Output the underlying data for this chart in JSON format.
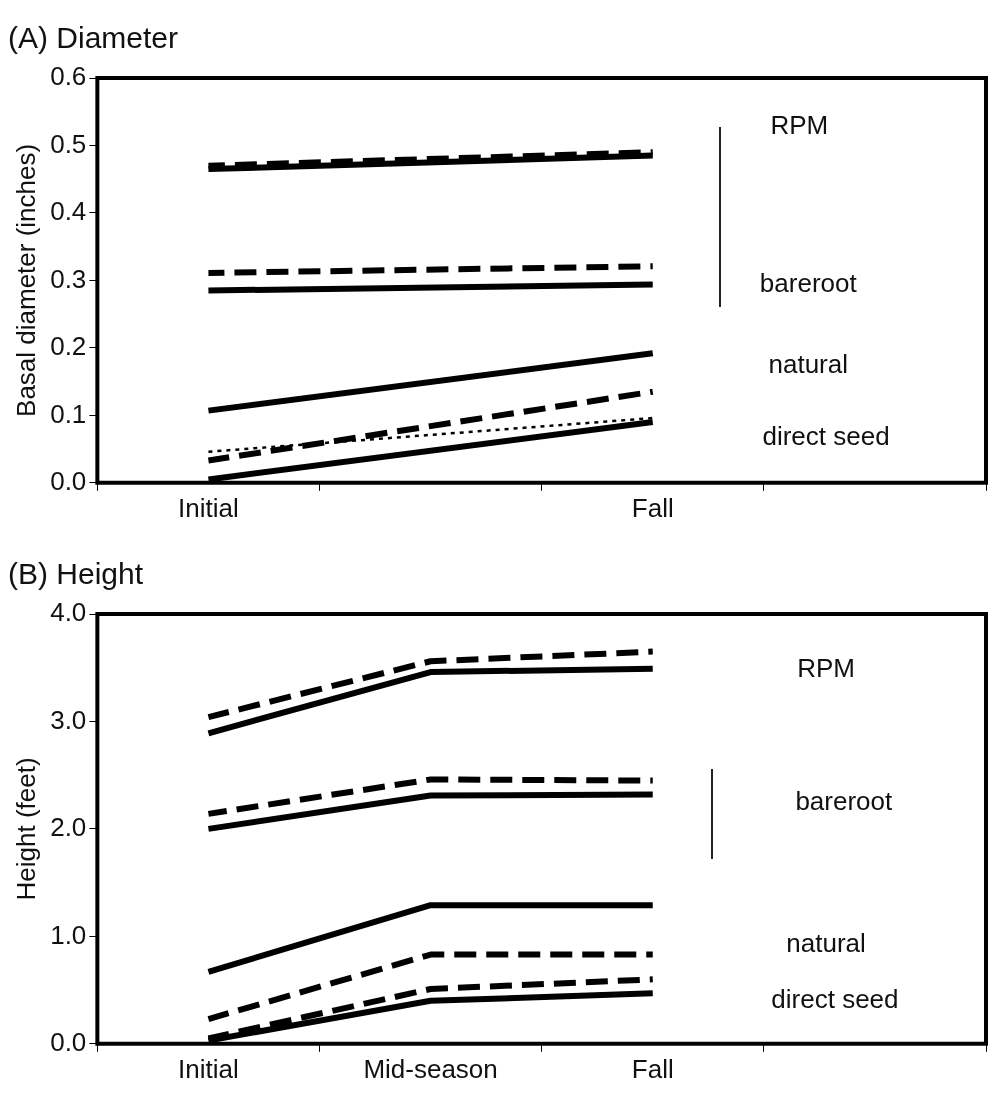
{
  "chart_data": [
    {
      "type": "line",
      "title": "(A) Diameter",
      "ylabel": "Basal diameter (inches)",
      "categories": [
        "Initial",
        null,
        "Fall",
        null
      ],
      "ylim": [
        0,
        0.6
      ],
      "yticks": [
        {
          "value": 0,
          "label": "0.0"
        },
        0.1,
        0.2,
        0.3,
        0.4,
        0.5,
        0.6
      ],
      "grid": false,
      "legend": false,
      "marker": "none",
      "series": [
        {
          "color": "#000000",
          "line_style": "solid",
          "values": [
            0.465,
            null,
            0.485,
            null
          ]
        },
        {
          "color": "#000000",
          "line_style": "dashed",
          "values": [
            0.47,
            null,
            0.49,
            null
          ]
        },
        {
          "color": "#000000",
          "line_style": "dashed",
          "values": [
            0.311,
            null,
            0.321,
            null
          ]
        },
        {
          "color": "#000000",
          "line_style": "solid",
          "values": [
            0.285,
            null,
            0.294,
            null
          ]
        },
        {
          "color": "#000000",
          "line_style": "solid",
          "values": [
            0.107,
            null,
            0.192,
            null
          ]
        },
        {
          "color": "#000000",
          "line_style": "dashed",
          "values": [
            0.033,
            null,
            0.135,
            null
          ]
        },
        {
          "color": "#000000",
          "line_style": "dotted",
          "values": [
            0.046,
            null,
            0.096,
            null
          ]
        },
        {
          "color": "#000000",
          "line_style": "solid",
          "values": [
            0.005,
            null,
            0.09,
            null
          ]
        }
      ],
      "annotations": [
        "RPM",
        "bareroot",
        "natural",
        "direct seed"
      ]
    },
    {
      "type": "line",
      "title": "(B) Height",
      "ylabel": "Height (feet)",
      "categories": [
        "Initial",
        "Mid-season",
        "Fall",
        null
      ],
      "ylim": [
        0,
        4
      ],
      "yticks": [
        {
          "value": 0,
          "label": "0.0"
        },
        {
          "value": 1,
          "label": "1.0"
        },
        {
          "value": 2,
          "label": "2.0"
        },
        {
          "value": 3,
          "label": "3.0"
        },
        {
          "value": 4,
          "label": "4.0"
        }
      ],
      "grid": false,
      "legend": false,
      "marker": "none",
      "series": [
        {
          "color": "#000000",
          "line_style": "dashed",
          "values": [
            3.04,
            3.56,
            3.65,
            null
          ]
        },
        {
          "color": "#000000",
          "line_style": "solid",
          "values": [
            2.89,
            3.46,
            3.49,
            null
          ]
        },
        {
          "color": "#000000",
          "line_style": "dashed",
          "values": [
            2.14,
            2.46,
            2.45,
            null
          ]
        },
        {
          "color": "#000000",
          "line_style": "solid",
          "values": [
            2.0,
            2.31,
            2.32,
            null
          ]
        },
        {
          "color": "#000000",
          "line_style": "solid",
          "values": [
            0.67,
            1.29,
            1.29,
            null
          ]
        },
        {
          "color": "#000000",
          "line_style": "dashed",
          "values": [
            0.23,
            0.83,
            0.83,
            null
          ]
        },
        {
          "color": "#000000",
          "line_style": "dashed",
          "values": [
            0.05,
            0.51,
            0.6,
            null
          ]
        },
        {
          "color": "#000000",
          "line_style": "solid",
          "values": [
            0.03,
            0.4,
            0.47,
            null
          ]
        }
      ],
      "annotations": [
        "RPM",
        "bareroot",
        "natural",
        "direct seed"
      ]
    }
  ]
}
